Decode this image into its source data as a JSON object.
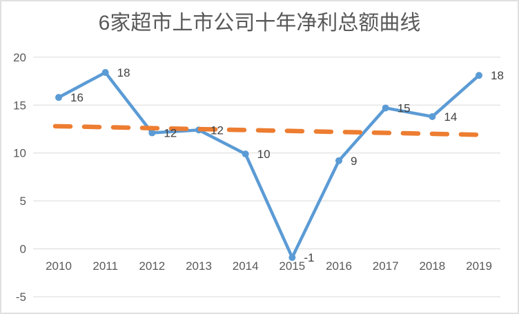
{
  "chart_data": {
    "type": "line",
    "title": "6家超市上市公司十年净利总额曲线",
    "categories": [
      "2010",
      "2011",
      "2012",
      "2013",
      "2014",
      "2015",
      "2016",
      "2017",
      "2018",
      "2019"
    ],
    "series": [
      {
        "values": [
          16,
          18,
          12,
          12,
          10,
          -1,
          9,
          15,
          14,
          18
        ],
        "values_precise": [
          15.8,
          18.4,
          12.1,
          12.4,
          9.9,
          -0.9,
          9.2,
          14.7,
          13.8,
          18.1
        ],
        "data_labels": [
          "16",
          "18",
          "12",
          "12",
          "10",
          "-1",
          "9",
          "15",
          "14",
          "18"
        ],
        "color": "#5B9BD5",
        "marker": "circle",
        "line_width": 4.5,
        "marker_radius": 5
      }
    ],
    "trendline": {
      "style": "dashed",
      "color": "#ED7D31",
      "start_value": 12.8,
      "end_value": 11.9,
      "line_width": 6.5
    },
    "ylim": [
      -5,
      20
    ],
    "yticks": [
      20,
      15,
      10,
      5,
      0,
      -5
    ],
    "xlabel": "",
    "ylabel": "",
    "grid": true,
    "legend": "none",
    "colors": {
      "grid": "#D9D9D9",
      "axis_text": "#595959",
      "label_text": "#404040",
      "frame_border": "#E0E0E0",
      "background": "#FFFFFF"
    }
  }
}
